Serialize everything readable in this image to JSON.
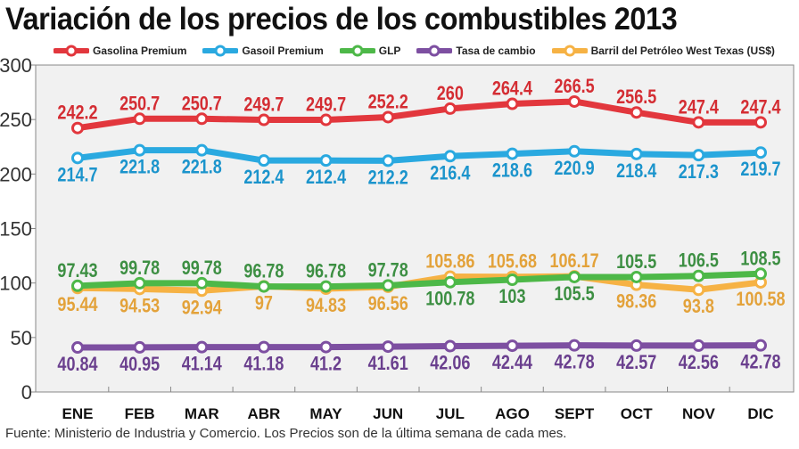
{
  "title": "Variación de los precios de los combustibles 2013",
  "footer": "Fuente: Ministerio de Industria y Comercio. Los Precios son de la última semana de cada mes.",
  "chart_data": {
    "type": "line",
    "title": "Variación de los precios de los combustibles 2013",
    "categories": [
      "ENE",
      "FEB",
      "MAR",
      "ABR",
      "MAY",
      "JUN",
      "JUL",
      "AGO",
      "SEPT",
      "OCT",
      "NOV",
      "DIC"
    ],
    "ylim": [
      0,
      300
    ],
    "yticks": [
      0,
      50,
      100,
      150,
      200,
      250,
      300
    ],
    "grid": false,
    "legend_placement": "top",
    "series": [
      {
        "name": "Gasolina Premium",
        "color": "#e2373d",
        "label_color": "#d42d33",
        "values": [
          242.2,
          250.7,
          250.7,
          249.7,
          249.7,
          252.2,
          260,
          264.4,
          266.5,
          256.5,
          247.4,
          247.4
        ],
        "labels": [
          "242.2",
          "250.7",
          "250.7",
          "249.7",
          "249.7",
          "252.2",
          "260",
          "264.4",
          "266.5",
          "256.5",
          "247.4",
          "247.4"
        ]
      },
      {
        "name": "Gasoil Premium",
        "color": "#2aa9e0",
        "label_color": "#1b94cc",
        "values": [
          214.7,
          221.8,
          221.8,
          212.4,
          212.4,
          212.2,
          216.4,
          218.6,
          220.9,
          218.4,
          217.3,
          219.7
        ],
        "labels": [
          "214.7",
          "221.8",
          "221.8",
          "212.4",
          "212.4",
          "212.2",
          "216.4",
          "218.6",
          "220.9",
          "218.4",
          "217.3",
          "219.7"
        ]
      },
      {
        "name": "GLP",
        "color": "#4db848",
        "label_color": "#3d8f43",
        "values": [
          97.43,
          99.78,
          99.78,
          96.78,
          96.78,
          97.78,
          100.78,
          103,
          105.5,
          105.5,
          106.5,
          108.5
        ],
        "labels": [
          "97.43",
          "99.78",
          "99.78",
          "96.78",
          "96.78",
          "97.78",
          "100.78",
          "103",
          "105.5",
          "105.5",
          "106.5",
          "108.5"
        ]
      },
      {
        "name": "Tasa de cambio",
        "color": "#7d4fa1",
        "label_color": "#6a3f8e",
        "values": [
          40.84,
          40.95,
          41.14,
          41.18,
          41.2,
          41.61,
          42.06,
          42.44,
          42.78,
          42.57,
          42.56,
          42.78
        ],
        "labels": [
          "40.84",
          "40.95",
          "41.14",
          "41.18",
          "41.2",
          "41.61",
          "42.06",
          "42.44",
          "42.78",
          "42.57",
          "42.56",
          "42.78"
        ]
      },
      {
        "name": "Barril del Petróleo West Texas (US$)",
        "color": "#f6b244",
        "label_color": "#e3a23a",
        "values": [
          95.44,
          94.53,
          92.94,
          97,
          94.83,
          96.56,
          105.86,
          105.68,
          106.17,
          98.36,
          93.8,
          100.58
        ],
        "labels": [
          "95.44",
          "94.53",
          "92.94",
          "97",
          "94.83",
          "96.56",
          "105.86",
          "105.68",
          "106.17",
          "98.36",
          "93.8",
          "100.58"
        ]
      }
    ]
  }
}
